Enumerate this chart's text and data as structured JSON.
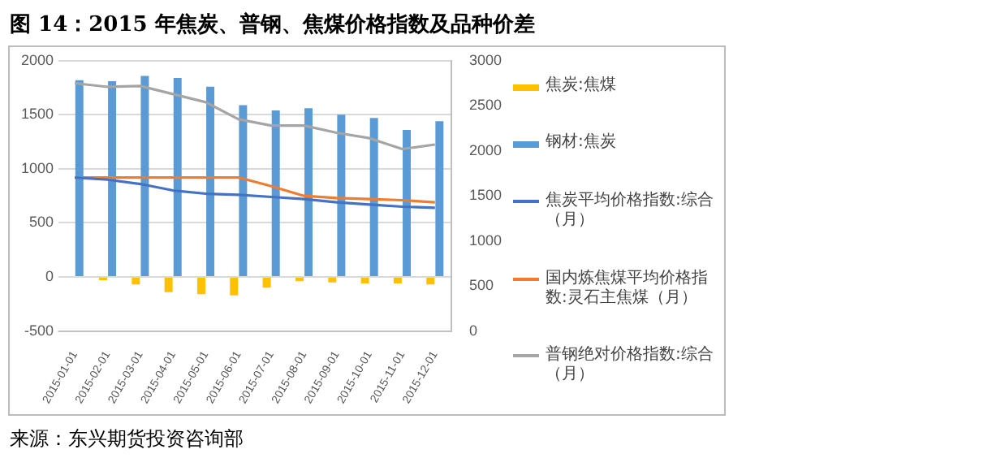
{
  "chart_data": {
    "type": "bar",
    "title": "图 14：2015 年焦炭、普钢、焦煤价格指数及品种价差",
    "categories": [
      "2015-01-01",
      "2015-02-01",
      "2015-03-01",
      "2015-04-01",
      "2015-05-01",
      "2015-06-01",
      "2015-07-01",
      "2015-08-01",
      "2015-09-01",
      "2015-10-01",
      "2015-11-01",
      "2015-12-01"
    ],
    "series": [
      {
        "name": "焦炭:焦煤",
        "color": "#ffc000",
        "values": [
          null,
          -30,
          -70,
          -140,
          -160,
          -170,
          -100,
          -40,
          -50,
          -60,
          -60,
          -70
        ]
      },
      {
        "name": "钢材:焦炭",
        "color": "#5b9bd5",
        "values": [
          1820,
          1810,
          1860,
          1840,
          1760,
          1590,
          1540,
          1560,
          1500,
          1470,
          1360,
          1440
        ]
      },
      {
        "name": "焦炭平均价格指数:综合（月）",
        "type": "line",
        "color": "#4472c4",
        "values": [
          920,
          900,
          860,
          800,
          770,
          760,
          740,
          720,
          690,
          670,
          650,
          640
        ]
      },
      {
        "name": "国内炼焦煤平均价格指数:灵石主焦煤（月）",
        "type": "line",
        "color": "#ed7d31",
        "values": [
          920,
          920,
          920,
          920,
          920,
          920,
          840,
          750,
          730,
          720,
          710,
          690
        ]
      },
      {
        "name": "普钢绝对价格指数:综合（月）",
        "type": "line",
        "axis": "y2",
        "color": "#a5a5a5",
        "values": [
          2750,
          2710,
          2720,
          2630,
          2540,
          2350,
          2280,
          2280,
          2200,
          2140,
          2020,
          2070
        ]
      }
    ],
    "ylim": [
      -500,
      2000
    ],
    "yticks": [
      -500,
      0,
      500,
      1000,
      1500,
      2000
    ],
    "y2lim": [
      0,
      3000
    ],
    "y2ticks": [
      0,
      500,
      1000,
      1500,
      2000,
      2500,
      3000
    ],
    "grid": "y",
    "legend": "right",
    "marker": "none",
    "annotations": [
      "来源：东兴期货投资咨询部"
    ]
  }
}
